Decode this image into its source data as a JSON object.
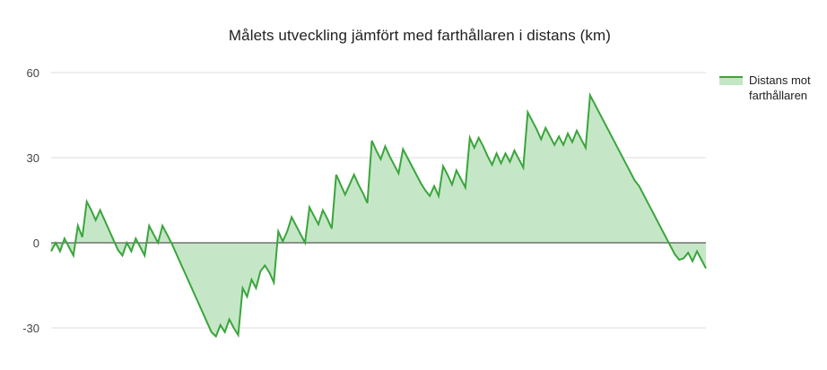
{
  "chart_data": {
    "type": "area",
    "title": "Målets utveckling jämfört med farthållaren i distans (km)",
    "xlabel": "",
    "ylabel": "",
    "ylim": [
      -38,
      60
    ],
    "yticks": [
      60,
      30,
      0,
      -30
    ],
    "grid": true,
    "legend_position": "right",
    "colors": {
      "line": "#3aa53c",
      "fill": "#c3e6c4",
      "grid": "#dddddd",
      "zero": "#333333"
    },
    "series": [
      {
        "name": "Distans mot farthållaren",
        "values": [
          -3,
          0,
          -3,
          1.5,
          -1.5,
          -4.5,
          6,
          2,
          14.5,
          11.5,
          8,
          11.5,
          8,
          4.5,
          1,
          -2.5,
          -4.5,
          0,
          -3,
          1.5,
          -1.5,
          -4.5,
          6,
          3,
          0,
          6,
          3,
          0,
          -3.5,
          -7,
          -10.5,
          -14,
          -17.5,
          -21,
          -24.5,
          -28,
          -31.5,
          -33,
          -29,
          -31.5,
          -27,
          -30,
          -32.5,
          -16,
          -19,
          -13,
          -16,
          -10,
          -8,
          -10.5,
          -14,
          4,
          0.5,
          4,
          9,
          6,
          3,
          0,
          12.5,
          9.5,
          6.5,
          11.5,
          8.5,
          5,
          24,
          20.5,
          17,
          20.5,
          24,
          20.5,
          17.5,
          14,
          36,
          32.5,
          29.5,
          34,
          30.5,
          27.5,
          24.5,
          33,
          30,
          27,
          24,
          21,
          18.5,
          16.5,
          20,
          16.5,
          27,
          24,
          20.5,
          25.5,
          22.5,
          19.5,
          37,
          33.5,
          37,
          34,
          30.5,
          27.5,
          31.5,
          28,
          31.5,
          28.5,
          32.5,
          29.5,
          26.5,
          46,
          43,
          40,
          36.5,
          40.5,
          37.5,
          34.5,
          37.5,
          34.5,
          38.5,
          35.5,
          39.5,
          36.5,
          33.5,
          52,
          49,
          46,
          43,
          40,
          37,
          34,
          31,
          28,
          25,
          22,
          20,
          17,
          14,
          11,
          8,
          5,
          2,
          -1,
          -4,
          -6,
          -5.5,
          -3.5,
          -6.5,
          -3,
          -6,
          -9
        ]
      }
    ]
  }
}
